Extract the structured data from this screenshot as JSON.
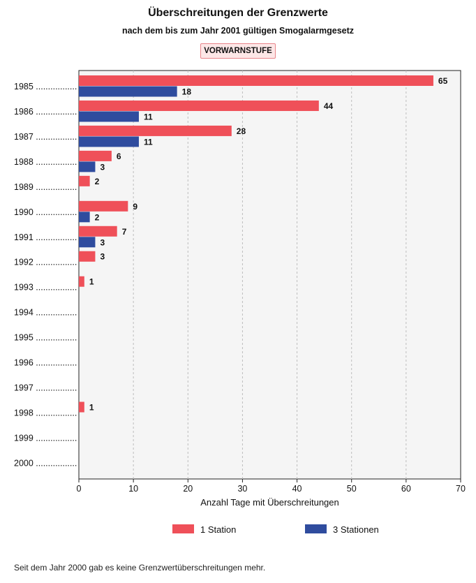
{
  "title": "Überschreitungen der Grenzwerte",
  "subtitle": "nach dem bis zum Jahr 2001 gültigen Smogalarmgesetz",
  "badge": "VORWARNSTUFE",
  "footnote": "Seit dem Jahr 2000 gab es keine Grenzwertüberschreitungen mehr.",
  "colors": {
    "series1": "#ef5059",
    "series2": "#2f4c9e",
    "plot_bg": "#f5f5f5"
  },
  "chart_data": {
    "type": "bar",
    "orientation": "horizontal",
    "categories": [
      "1985",
      "1986",
      "1987",
      "1988",
      "1989",
      "1990",
      "1991",
      "1992",
      "1993",
      "1994",
      "1995",
      "1996",
      "1997",
      "1998",
      "1999",
      "2000"
    ],
    "category_suffix": " .................",
    "series": [
      {
        "name": "1 Station",
        "values": [
          65,
          44,
          28,
          6,
          2,
          9,
          7,
          3,
          1,
          0,
          0,
          0,
          0,
          1,
          0,
          0
        ]
      },
      {
        "name": "3 Stationen",
        "values": [
          18,
          11,
          11,
          3,
          0,
          2,
          3,
          0,
          0,
          0,
          0,
          0,
          0,
          0,
          0,
          0
        ]
      }
    ],
    "xlabel": "Anzahl Tage mit Überschreitungen",
    "ylabel": "",
    "xlim": [
      0,
      70
    ],
    "xticks": [
      0,
      10,
      20,
      30,
      40,
      50,
      60,
      70
    ],
    "grid": "vertical-dashed",
    "legend_position": "bottom"
  }
}
